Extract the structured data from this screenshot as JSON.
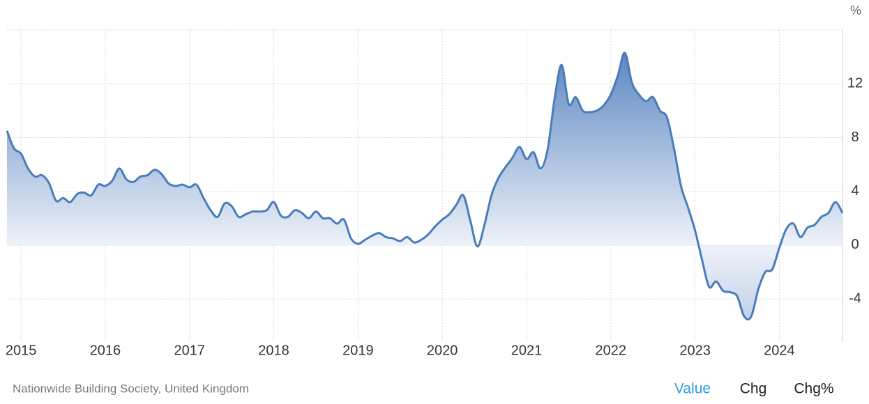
{
  "chart_data": {
    "type": "area",
    "unit": "%",
    "source": "Nationwide Building Society, United Kingdom",
    "buttons": [
      "Value",
      "Chg",
      "Chg%"
    ],
    "active_button": "Value",
    "x": [
      "2014-11",
      "2014-12",
      "2015-01",
      "2015-02",
      "2015-03",
      "2015-04",
      "2015-05",
      "2015-06",
      "2015-07",
      "2015-08",
      "2015-09",
      "2015-10",
      "2015-11",
      "2015-12",
      "2016-01",
      "2016-02",
      "2016-03",
      "2016-04",
      "2016-05",
      "2016-06",
      "2016-07",
      "2016-08",
      "2016-09",
      "2016-10",
      "2016-11",
      "2016-12",
      "2017-01",
      "2017-02",
      "2017-03",
      "2017-04",
      "2017-05",
      "2017-06",
      "2017-07",
      "2017-08",
      "2017-09",
      "2017-10",
      "2017-11",
      "2017-12",
      "2018-01",
      "2018-02",
      "2018-03",
      "2018-04",
      "2018-05",
      "2018-06",
      "2018-07",
      "2018-08",
      "2018-09",
      "2018-10",
      "2018-11",
      "2018-12",
      "2019-01",
      "2019-02",
      "2019-03",
      "2019-04",
      "2019-05",
      "2019-06",
      "2019-07",
      "2019-08",
      "2019-09",
      "2019-10",
      "2019-11",
      "2019-12",
      "2020-01",
      "2020-02",
      "2020-03",
      "2020-04",
      "2020-05",
      "2020-06",
      "2020-07",
      "2020-08",
      "2020-09",
      "2020-10",
      "2020-11",
      "2020-12",
      "2021-01",
      "2021-02",
      "2021-03",
      "2021-04",
      "2021-05",
      "2021-06",
      "2021-07",
      "2021-08",
      "2021-09",
      "2021-10",
      "2021-11",
      "2021-12",
      "2022-01",
      "2022-02",
      "2022-03",
      "2022-04",
      "2022-05",
      "2022-06",
      "2022-07",
      "2022-08",
      "2022-09",
      "2022-10",
      "2022-11",
      "2022-12",
      "2023-01",
      "2023-02",
      "2023-03",
      "2023-04",
      "2023-05",
      "2023-06",
      "2023-07",
      "2023-08",
      "2023-09",
      "2023-10",
      "2023-11",
      "2023-12",
      "2024-01",
      "2024-02",
      "2024-03",
      "2024-04",
      "2024-05",
      "2024-06",
      "2024-07",
      "2024-08",
      "2024-09",
      "2024-10"
    ],
    "series": [
      {
        "name": "Value",
        "color": "#4a7bbb",
        "values": [
          8.5,
          7.2,
          6.8,
          5.7,
          5.1,
          5.2,
          4.6,
          3.3,
          3.5,
          3.2,
          3.8,
          3.9,
          3.7,
          4.5,
          4.4,
          4.8,
          5.7,
          4.9,
          4.7,
          5.1,
          5.2,
          5.6,
          5.3,
          4.6,
          4.4,
          4.5,
          4.3,
          4.5,
          3.5,
          2.6,
          2.1,
          3.1,
          2.9,
          2.1,
          2.3,
          2.5,
          2.5,
          2.6,
          3.2,
          2.2,
          2.1,
          2.6,
          2.4,
          2.0,
          2.5,
          2.0,
          2.0,
          1.6,
          1.9,
          0.5,
          0.1,
          0.4,
          0.7,
          0.9,
          0.6,
          0.5,
          0.3,
          0.6,
          0.2,
          0.4,
          0.8,
          1.4,
          1.9,
          2.3,
          3.0,
          3.7,
          1.8,
          -0.1,
          1.5,
          3.7,
          5.0,
          5.8,
          6.5,
          7.3,
          6.4,
          6.9,
          5.7,
          7.1,
          10.9,
          13.4,
          10.5,
          11.0,
          10.0,
          9.9,
          10.0,
          10.4,
          11.2,
          12.6,
          14.3,
          12.1,
          11.2,
          10.7,
          11.0,
          10.0,
          9.5,
          7.2,
          4.4,
          2.8,
          1.1,
          -1.1,
          -3.1,
          -2.7,
          -3.4,
          -3.5,
          -3.8,
          -5.3,
          -5.3,
          -3.3,
          -2.0,
          -1.8,
          -0.2,
          1.2,
          1.6,
          0.6,
          1.3,
          1.5,
          2.1,
          2.4,
          3.2,
          2.4
        ]
      }
    ],
    "xlim": [
      "2014-11",
      "2024-10"
    ],
    "xticks": [
      {
        "value": "2015-01",
        "label": "2015"
      },
      {
        "value": "2016-01",
        "label": "2016"
      },
      {
        "value": "2017-01",
        "label": "2017"
      },
      {
        "value": "2018-01",
        "label": "2018"
      },
      {
        "value": "2019-01",
        "label": "2019"
      },
      {
        "value": "2020-01",
        "label": "2020"
      },
      {
        "value": "2021-01",
        "label": "2021"
      },
      {
        "value": "2022-01",
        "label": "2022"
      },
      {
        "value": "2023-01",
        "label": "2023"
      },
      {
        "value": "2024-01",
        "label": "2024"
      }
    ],
    "ylim": [
      -7.2,
      16
    ],
    "yticks": [
      -4,
      0,
      4,
      8,
      12
    ],
    "grid": true
  }
}
